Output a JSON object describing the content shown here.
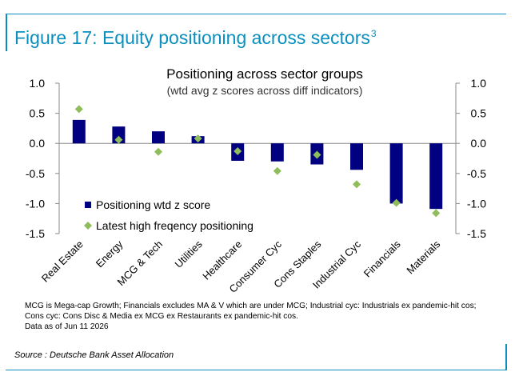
{
  "figure": {
    "title": "Figure 17: Equity positioning across sectors",
    "title_superscript": "3",
    "accent_color": "#0a8fbe"
  },
  "chart_data": {
    "type": "bar",
    "title": "Positioning across sector groups",
    "subtitle": "(wtd avg z scores across diff indicators)",
    "categories": [
      "Real Estate",
      "Energy",
      "MCG & Tech",
      "Utilities",
      "Healthcare",
      "Consumer Cyc",
      "Cons Staples",
      "Industrial Cyc",
      "Financials",
      "Materials"
    ],
    "series": [
      {
        "name": "Positioning wtd z score",
        "type": "bar",
        "color": "#000080",
        "values": [
          0.39,
          0.28,
          0.2,
          0.12,
          -0.29,
          -0.3,
          -0.35,
          -0.44,
          -1.0,
          -1.09
        ]
      },
      {
        "name": "Latest high freqency positioning",
        "type": "scatter",
        "marker": "diamond",
        "color": "#8fbd5a",
        "values": [
          0.57,
          0.06,
          -0.14,
          0.08,
          -0.13,
          -0.46,
          -0.19,
          -0.68,
          -0.99,
          -1.16
        ]
      }
    ],
    "ylim": [
      -1.5,
      1.0
    ],
    "yticks": [
      "1.0",
      "0.5",
      "0.0",
      "-0.5",
      "-1.0",
      "-1.5"
    ],
    "ytick_values": [
      1.0,
      0.5,
      0.0,
      -0.5,
      -1.0,
      -1.5
    ],
    "secondary_axis": true,
    "grid": false,
    "legend_position": "lower-left"
  },
  "footnote": {
    "line1": "MCG is Mega-cap Growth; Financials excludes MA & V which are under MCG;  Industrial cyc: Industrials ex pandemic-hit cos;",
    "line2": "Cons cyc: Cons Disc & Media ex MCG ex Restaurants ex pandemic-hit cos.",
    "line3": "Data as of Jun 11 2026"
  },
  "source": "Source : Deutsche Bank Asset Allocation"
}
